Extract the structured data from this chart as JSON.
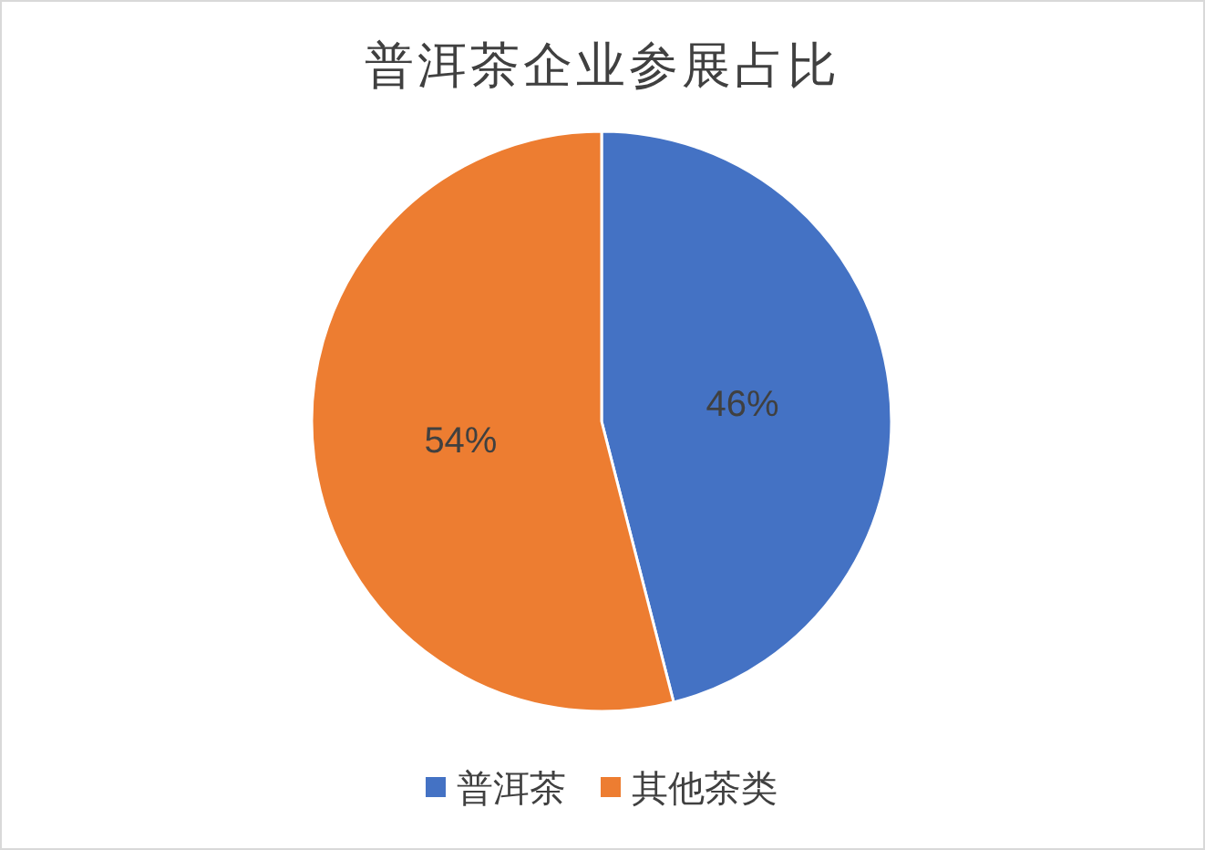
{
  "chart_data": {
    "type": "pie",
    "title": "普洱茶企业参展占比",
    "categories": [
      "普洱茶",
      "其他茶类"
    ],
    "values": [
      46,
      54
    ],
    "colors": [
      "#4472c4",
      "#ed7d31"
    ],
    "value_labels": [
      "46%",
      "54%"
    ],
    "legend": "bottom"
  }
}
